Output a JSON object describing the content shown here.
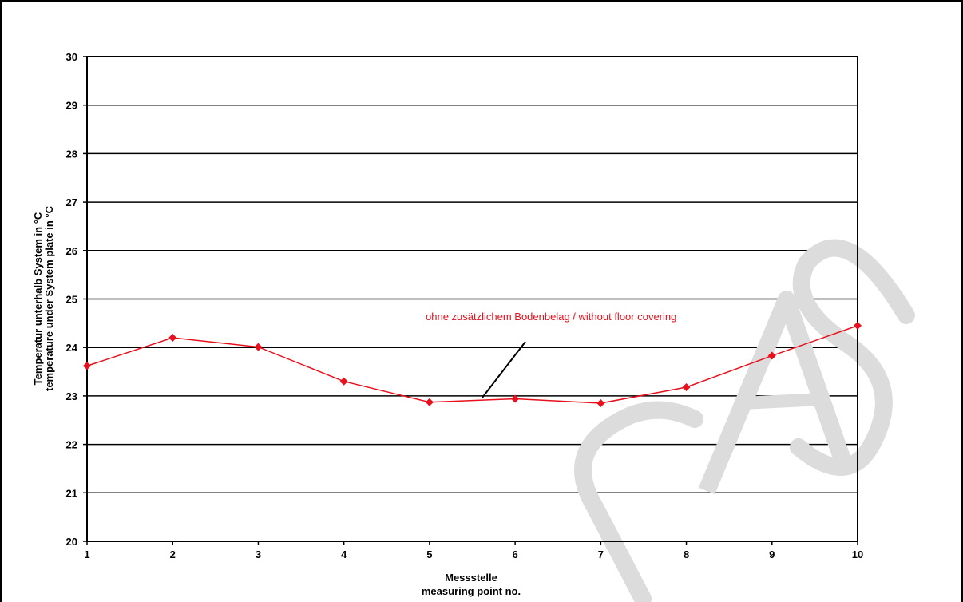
{
  "chart_data": {
    "type": "line",
    "x": [
      1,
      2,
      3,
      4,
      5,
      6,
      7,
      8,
      9,
      10
    ],
    "series": [
      {
        "name": "",
        "values": [
          23.62,
          24.2,
          24.01,
          23.3,
          22.87,
          22.94,
          22.85,
          23.18,
          23.83,
          24.45
        ],
        "color": "#e8101c"
      }
    ],
    "xlim": [
      1,
      10
    ],
    "ylim": [
      20,
      30
    ],
    "xticks": [
      "1",
      "2",
      "3",
      "4",
      "5",
      "6",
      "7",
      "8",
      "9",
      "10"
    ],
    "yticks": [
      "20",
      "21",
      "22",
      "23",
      "24",
      "25",
      "26",
      "27",
      "28",
      "29",
      "30"
    ],
    "xlabel": [
      "Messstelle",
      "measuring point no."
    ],
    "ylabel": [
      "Temperatur unterhalb System in °C",
      "temperature under System plate in °C"
    ],
    "annotation": "ohne zusätzlichem Bodenbelag / without floor covering",
    "grid": "horizontal",
    "watermark": "CAS"
  }
}
